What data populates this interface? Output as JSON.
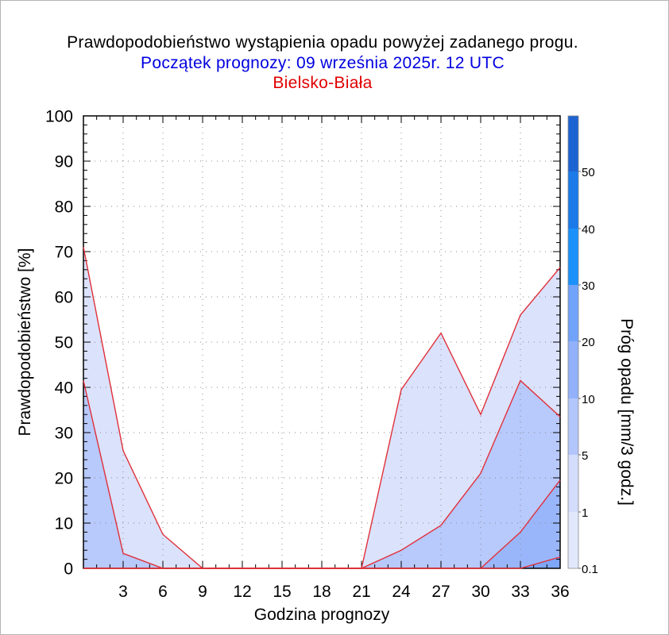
{
  "chart_data": {
    "type": "area",
    "title": "Prawdopodobieństwo wystąpienia opadu powyżej zadanego progu.",
    "subtitle": "Początek prognozy: 09 września 2025r. 12 UTC",
    "location": "Bielsko-Biała",
    "xlabel": "Godzina prognozy",
    "ylabel": "Prawdopodobieństwo [%]",
    "colorbar_label": "Próg opadu [mm/3 godz.]",
    "x": [
      0,
      3,
      6,
      9,
      12,
      15,
      18,
      21,
      24,
      27,
      30,
      33,
      36
    ],
    "x_tick_labels": [
      "3",
      "6",
      "9",
      "12",
      "15",
      "18",
      "21",
      "24",
      "27",
      "30",
      "33",
      "36"
    ],
    "y_tick_labels": [
      "0",
      "10",
      "20",
      "30",
      "40",
      "50",
      "60",
      "70",
      "80",
      "90",
      "100"
    ],
    "xlim": [
      0,
      36
    ],
    "ylim": [
      0,
      100
    ],
    "grid": true,
    "colorbar_tick_labels": [
      "0.1",
      "1",
      "5",
      "10",
      "20",
      "30",
      "40",
      "50"
    ],
    "colorbar_bands": [
      {
        "from": 0.1,
        "color": "#e2e8fc"
      },
      {
        "from": 1,
        "color": "#d4ddfc"
      },
      {
        "from": 5,
        "color": "#b3c6fb"
      },
      {
        "from": 10,
        "color": "#92b1fa"
      },
      {
        "from": 20,
        "color": "#72a3fa"
      },
      {
        "from": 30,
        "color": "#1c91fa"
      },
      {
        "from": 40,
        "color": "#1c7ae9"
      },
      {
        "from": 50,
        "color": "#1d63d2"
      },
      {
        "from": 60,
        "color": "#1748b0"
      }
    ],
    "series": [
      {
        "threshold": "0.1",
        "color": "#dbe2fc",
        "values": [
          71,
          26,
          7.5,
          0,
          0,
          0,
          0,
          0,
          39.5,
          52,
          34,
          56,
          66.5
        ]
      },
      {
        "threshold": "1",
        "color": "#b8c9fb",
        "values": [
          41.5,
          3.3,
          0,
          0,
          0,
          0,
          0,
          0,
          4,
          9.5,
          21,
          41.5,
          33.5
        ]
      },
      {
        "threshold": "5",
        "color": "#9ab6fa",
        "values": [
          0,
          0,
          0,
          0,
          0,
          0,
          0,
          0,
          0,
          0,
          0,
          8,
          19.5
        ]
      },
      {
        "threshold": "10",
        "color": "#7ea6f9",
        "values": [
          0,
          0,
          0,
          0,
          0,
          0,
          0,
          0,
          0,
          0,
          0,
          0,
          2.5
        ]
      }
    ],
    "line_color": "#e0303a"
  }
}
